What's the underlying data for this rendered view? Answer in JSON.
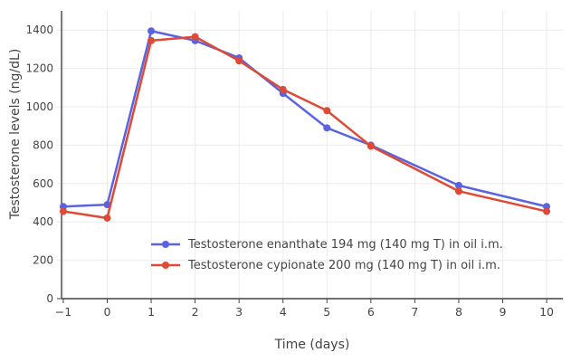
{
  "chart_data": {
    "type": "line",
    "title": "",
    "x": [
      -1,
      0,
      1,
      2,
      3,
      4,
      5,
      6,
      8,
      10
    ],
    "series": [
      {
        "name": "Testosterone enanthate 194 mg (140 mg T) in oil i.m.",
        "color": "#5b64e0",
        "values": [
          480,
          490,
          1395,
          1345,
          1255,
          1070,
          890,
          800,
          590,
          480
        ]
      },
      {
        "name": "Testosterone cypionate 200 mg (140 mg T) in oil i.m.",
        "color": "#de4a35",
        "values": [
          455,
          420,
          1345,
          1365,
          1240,
          1090,
          980,
          795,
          560,
          455
        ]
      }
    ],
    "xlabel": "Time (days)",
    "ylabel": "Testosterone levels (ng/dL)",
    "xticks": [
      -1,
      0,
      1,
      2,
      3,
      4,
      5,
      6,
      7,
      8,
      9,
      10
    ],
    "yticks": [
      0,
      200,
      400,
      600,
      800,
      1000,
      1200,
      1400
    ],
    "xlim": [
      -1.04,
      10.37
    ],
    "ylim": [
      0,
      1500
    ],
    "grid": true,
    "legend_position": "inside-bottom-center",
    "colors": {
      "axis": "#444444",
      "grid": "#ebebeb",
      "text": "#444444",
      "background": "#ffffff"
    }
  }
}
